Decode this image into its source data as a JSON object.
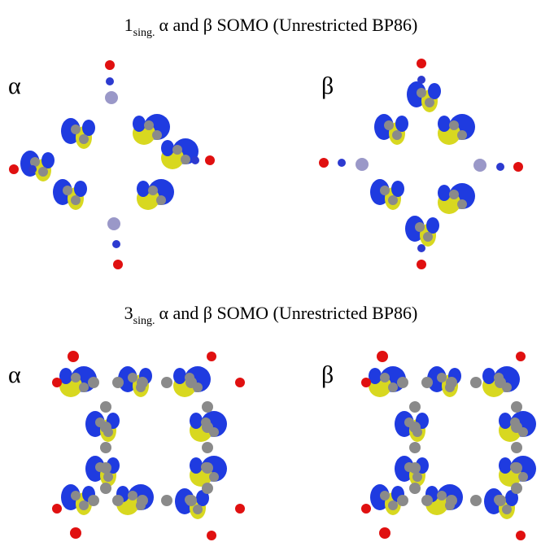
{
  "sections": [
    {
      "title": {
        "number": "1",
        "subscript": "sing.",
        "text": "α and β SOMO (Unrestricted BP86)"
      },
      "panels": [
        {
          "label": "α"
        },
        {
          "label": "β"
        }
      ]
    },
    {
      "title": {
        "number": "3",
        "subscript": "sing.",
        "text": "α and β SOMO (Unrestricted BP86)"
      },
      "panels": [
        {
          "label": "α"
        },
        {
          "label": "β"
        }
      ]
    }
  ]
}
